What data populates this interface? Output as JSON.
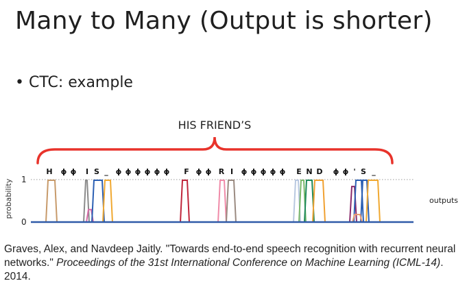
{
  "slide": {
    "title": "Many to Many (Output is shorter)",
    "bullet": "CTC: example"
  },
  "figure": {
    "brace_label": "HIS FRIEND’S",
    "y_axis_label": "probability",
    "y_tick_1": "1",
    "y_tick_0": "0",
    "x_axis_label": "outputs",
    "tokens": [
      "H",
      "ɸ",
      "ɸ",
      "I",
      "S",
      "_",
      "ɸ",
      "ɸ",
      "ɸ",
      "ɸ",
      "ɸ",
      "ɸ",
      "F",
      "ɸ",
      "ɸ",
      "R",
      "I",
      "ɸ",
      "ɸ",
      "ɸ",
      "ɸ",
      "ɸ",
      "E",
      "N",
      "D",
      "ɸ",
      "ɸ",
      "'",
      "S",
      "_"
    ],
    "colors": {
      "brace": "#e8332b",
      "axis": "#2f5aa8",
      "grid": "#9a9a9a"
    }
  },
  "citation": {
    "plain_1": "Graves, Alex, and Navdeep Jaitly. \"Towards end-to-end speech recognition with recurrent neural networks.\" ",
    "italic": "Proceedings of the 31st International Conference on Machine Learning (ICML-14)",
    "plain_2": ". 2014."
  }
}
